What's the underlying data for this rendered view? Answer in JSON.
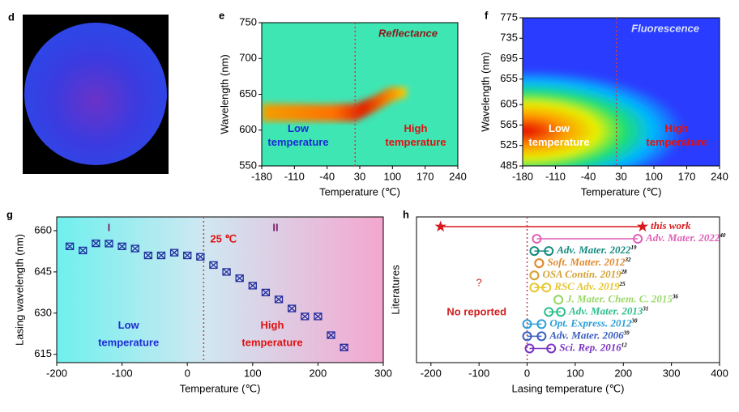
{
  "chart_data": [
    {
      "type": "image",
      "label": "d"
    },
    {
      "type": "heatmap",
      "label": "e",
      "title": "Reflectance",
      "xlabel": "Temperature (℃)",
      "ylabel": "Wavelength (nm)",
      "xlim": [
        -180,
        240
      ],
      "ylim": [
        550,
        750
      ],
      "xticks": [
        -180,
        -110,
        -40,
        30,
        100,
        170,
        240
      ],
      "yticks": [
        550,
        600,
        650,
        700,
        750
      ],
      "divider_x": 20,
      "low_label": [
        "Low",
        "temperature"
      ],
      "high_label": [
        "High",
        "temperature"
      ]
    },
    {
      "type": "heatmap",
      "label": "f",
      "title": "Fluorescence",
      "xlabel": "Temperature (℃)",
      "ylabel": "Wavelength (nm)",
      "xlim": [
        -180,
        240
      ],
      "ylim": [
        485,
        775
      ],
      "xticks": [
        -180,
        -110,
        -40,
        30,
        100,
        170,
        240
      ],
      "yticks": [
        485,
        525,
        565,
        605,
        655,
        695,
        735,
        775
      ],
      "divider_x": 20,
      "low_label": [
        "Low",
        "temperature"
      ],
      "high_label": [
        "High",
        "temperature"
      ]
    },
    {
      "type": "scatter",
      "label": "g",
      "xlabel": "Temperature (℃)",
      "ylabel": "Lasing wavelength (nm)",
      "xlim": [
        -200,
        300
      ],
      "ylim": [
        612,
        665
      ],
      "xticks": [
        -200,
        -100,
        0,
        100,
        200,
        300
      ],
      "yticks": [
        615,
        630,
        645,
        660
      ],
      "color": "#1f2d9e",
      "x": [
        -180,
        -160,
        -140,
        -120,
        -100,
        -80,
        -60,
        -40,
        -20,
        0,
        20,
        40,
        60,
        80,
        100,
        120,
        140,
        160,
        180,
        200,
        220,
        240
      ],
      "values": [
        654.3,
        652.8,
        655.4,
        655.3,
        654.3,
        653.5,
        651,
        651,
        652,
        651,
        650.5,
        647.5,
        645,
        642.7,
        640,
        637.5,
        635,
        631.7,
        628.8,
        628.8,
        622,
        617.5
      ],
      "divider_x": 25,
      "divider_label": "25 ℃",
      "region_labels": [
        "I",
        "II"
      ],
      "low_label": [
        "Low",
        "temperature"
      ],
      "high_label": [
        "High",
        "temperature"
      ]
    },
    {
      "type": "range",
      "label": "h",
      "xlabel": "Lasing temperature (℃)",
      "ylabel": "Literatures",
      "xlim": [
        -230,
        400
      ],
      "xticks": [
        -200,
        -100,
        0,
        100,
        200,
        300,
        400
      ],
      "divider_x": 0,
      "question": "?",
      "no_report": "No reported",
      "items": [
        {
          "name": "this work",
          "ref": "",
          "color": "#d7191c",
          "marker": "star",
          "range": [
            -180,
            240
          ]
        },
        {
          "name": "Adv. Mater. 2022",
          "ref": "40",
          "color": "#e060b8",
          "marker": "circle",
          "range": [
            20,
            230
          ]
        },
        {
          "name": "Adv. Mater. 2022",
          "ref": "19",
          "color": "#168a7e",
          "marker": "circle",
          "range": [
            15,
            45
          ]
        },
        {
          "name": "Soft. Matter. 2012",
          "ref": "32",
          "color": "#e08a30",
          "marker": "circle",
          "range": [
            25,
            25
          ]
        },
        {
          "name": "OSA Contin. 2019",
          "ref": "28",
          "color": "#d4a437",
          "marker": "circle",
          "range": [
            15,
            15
          ]
        },
        {
          "name": "RSC Adv. 2019",
          "ref": "25",
          "color": "#e6c62f",
          "marker": "circle",
          "range": [
            15,
            40
          ]
        },
        {
          "name": "J. Mater. Chem. C. 2015",
          "ref": "36",
          "color": "#9ad86a",
          "marker": "circle",
          "range": [
            65,
            65
          ]
        },
        {
          "name": "Adv. Mater. 2013",
          "ref": "31",
          "color": "#2cbf8a",
          "marker": "circle",
          "range": [
            45,
            70
          ]
        },
        {
          "name": "Opt. Express. 2012",
          "ref": "30",
          "color": "#2a9ed8",
          "marker": "circle",
          "range": [
            0,
            30
          ]
        },
        {
          "name": "Adv. Mater. 2006",
          "ref": "39",
          "color": "#3a5cc0",
          "marker": "circle",
          "range": [
            0,
            30
          ]
        },
        {
          "name": "Sci. Rep. 2016",
          "ref": "12",
          "color": "#7a34c4",
          "marker": "circle",
          "range": [
            5,
            50
          ]
        }
      ]
    }
  ]
}
